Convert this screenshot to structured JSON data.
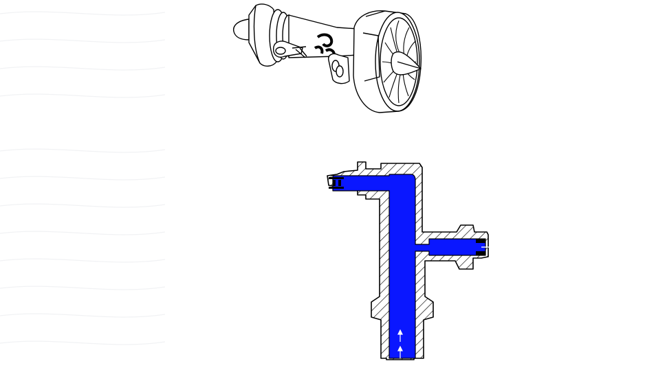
{
  "figure": {
    "upper_illustration": "jet-engine-with-fan",
    "lower_illustration": "tee-fitting-cross-section",
    "flow_direction": "up",
    "colors": {
      "fluid": "#0a17ff",
      "line": "#000000",
      "background": "#ffffff",
      "watermark": "#f3f4f6"
    }
  }
}
